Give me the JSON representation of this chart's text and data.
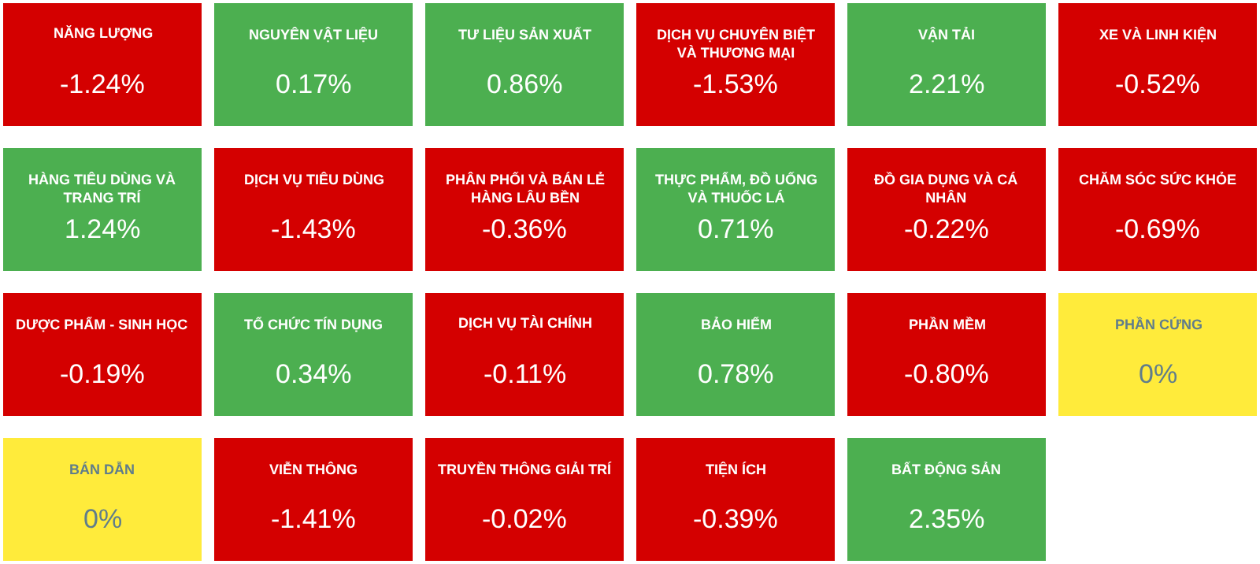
{
  "chart_data": {
    "type": "other",
    "categories": [
      "NĂNG LƯỢNG",
      "NGUYÊN VẬT LIỆU",
      "TƯ LIỆU SẢN XUẤT",
      "DỊCH VỤ CHUYÊN BIỆT VÀ THƯƠNG MẠI",
      "VẬN TẢI",
      "XE VÀ LINH KIỆN",
      "HÀNG TIÊU DÙNG VÀ TRANG TRÍ",
      "DỊCH VỤ TIÊU DÙNG",
      "PHÂN PHỐI VÀ BÁN LẺ HÀNG LÂU BỀN",
      "THỰC PHẨM, ĐỒ UỐNG VÀ THUỐC LÁ",
      "ĐỒ GIA DỤNG VÀ CÁ NHÂN",
      "CHĂM SÓC SỨC KHỎE",
      "DƯỢC PHẨM - SINH HỌC",
      "TỔ CHỨC TÍN DỤNG",
      "DỊCH VỤ TÀI CHÍNH",
      "BẢO HIỂM",
      "PHẦN MỀM",
      "PHẦN CỨNG",
      "BÁN DẪN",
      "VIỄN THÔNG",
      "TRUYỀN THÔNG GIẢI TRÍ",
      "TIỆN ÍCH",
      "BẤT ĐỘNG SẢN"
    ],
    "values": [
      -1.24,
      0.17,
      0.86,
      -1.53,
      2.21,
      -0.52,
      1.24,
      -1.43,
      -0.36,
      0.71,
      -0.22,
      -0.69,
      -0.19,
      0.34,
      -0.11,
      0.78,
      -0.8,
      0,
      0,
      -1.41,
      -0.02,
      -0.39,
      2.35
    ],
    "value_labels": [
      "-1.24%",
      "0.17%",
      "0.86%",
      "-1.53%",
      "2.21%",
      "-0.52%",
      "1.24%",
      "-1.43%",
      "-0.36%",
      "0.71%",
      "-0.22%",
      "-0.69%",
      "-0.19%",
      "0.34%",
      "-0.11%",
      "0.78%",
      "-0.80%",
      "0%",
      "0%",
      "-1.41%",
      "-0.02%",
      "-0.39%",
      "2.35%"
    ],
    "colors": [
      "#d40000",
      "#4caf50",
      "#4caf50",
      "#d40000",
      "#4caf50",
      "#d40000",
      "#4caf50",
      "#d40000",
      "#d40000",
      "#4caf50",
      "#d40000",
      "#d40000",
      "#d40000",
      "#4caf50",
      "#d40000",
      "#4caf50",
      "#d40000",
      "#ffeb3b",
      "#ffeb3b",
      "#d40000",
      "#d40000",
      "#d40000",
      "#4caf50"
    ]
  }
}
